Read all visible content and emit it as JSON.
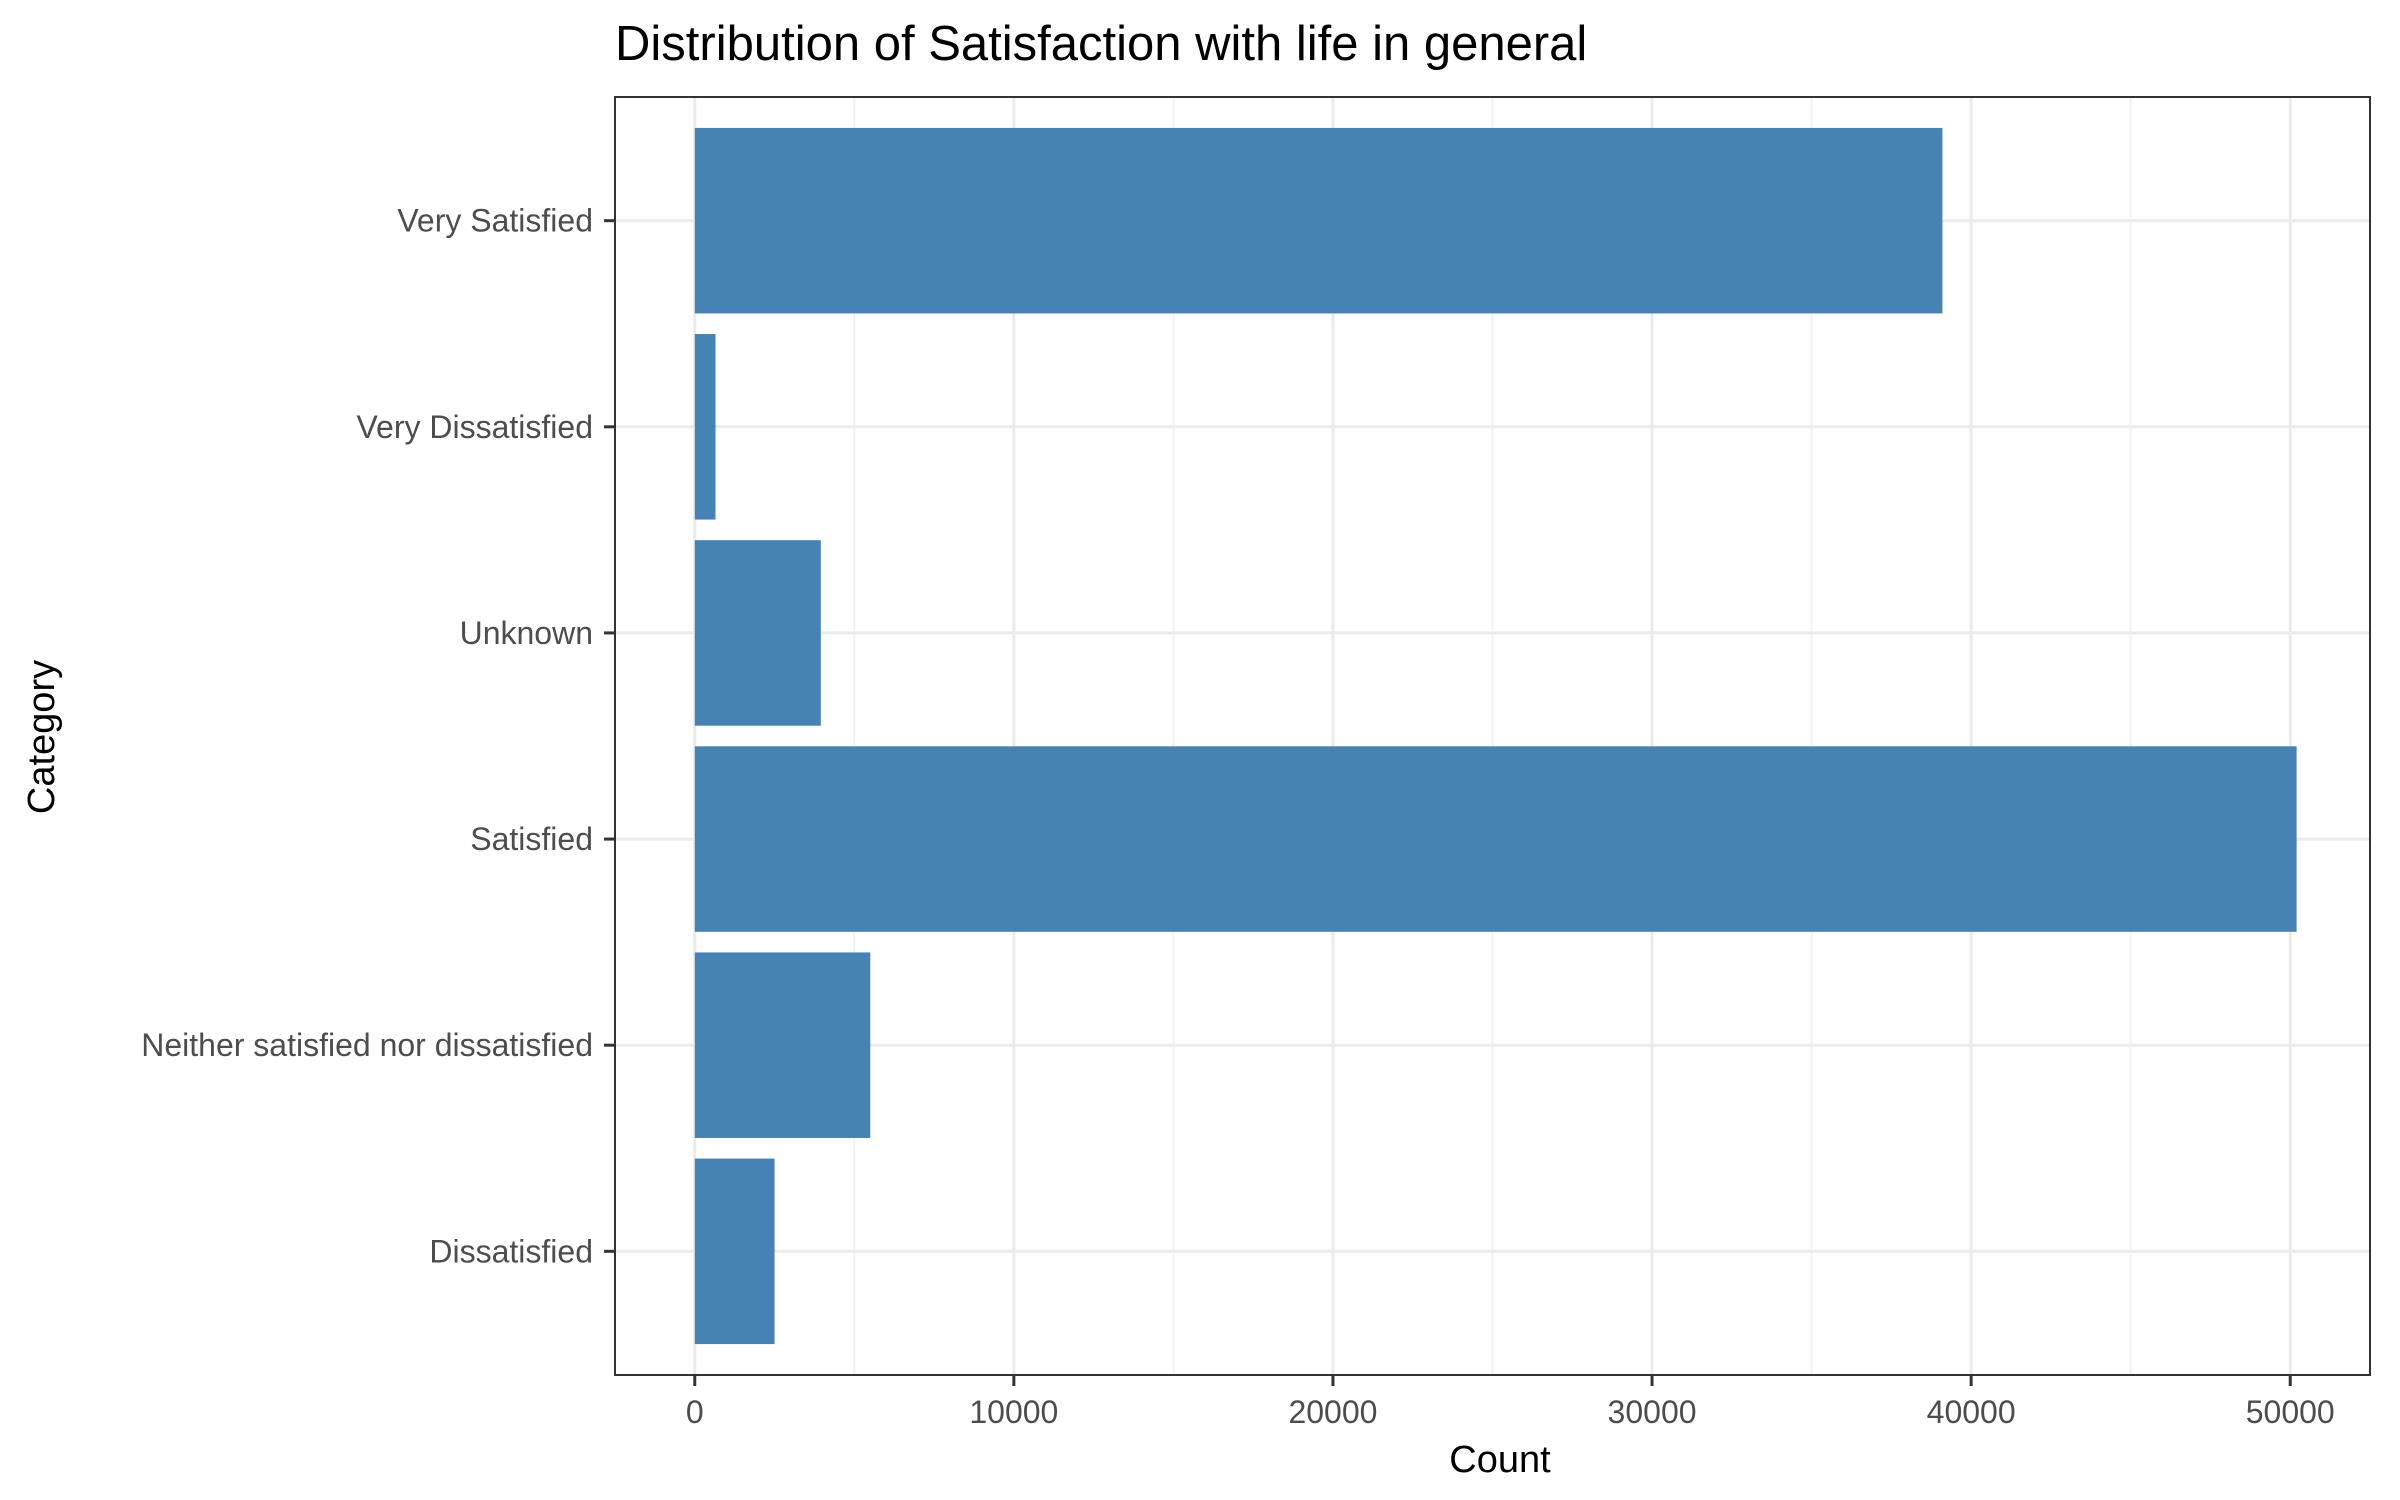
{
  "chart_data": {
    "type": "bar",
    "orientation": "horizontal",
    "title": "Distribution of Satisfaction with life in general",
    "xlabel": "Count",
    "ylabel": "Category",
    "categories": [
      "Dissatisfied",
      "Neither satisfied nor dissatisfied",
      "Satisfied",
      "Unknown",
      "Very Dissatisfied",
      "Very Satisfied"
    ],
    "values": [
      2500,
      5500,
      50200,
      3950,
      650,
      39100
    ],
    "xlim": [
      -2500,
      52500
    ],
    "xticks": [
      0,
      10000,
      20000,
      30000,
      40000,
      50000
    ],
    "xtick_labels": [
      "0",
      "10000",
      "20000",
      "30000",
      "40000",
      "50000"
    ],
    "grid": true,
    "legend": "none",
    "colors": {
      "bar": "#4682B4",
      "panel_border": "#333333",
      "grid_major": "#EBEBEB",
      "grid_minor": "#F2F2F2",
      "tick_label": "#4D4D4D",
      "text": "#000000"
    }
  }
}
